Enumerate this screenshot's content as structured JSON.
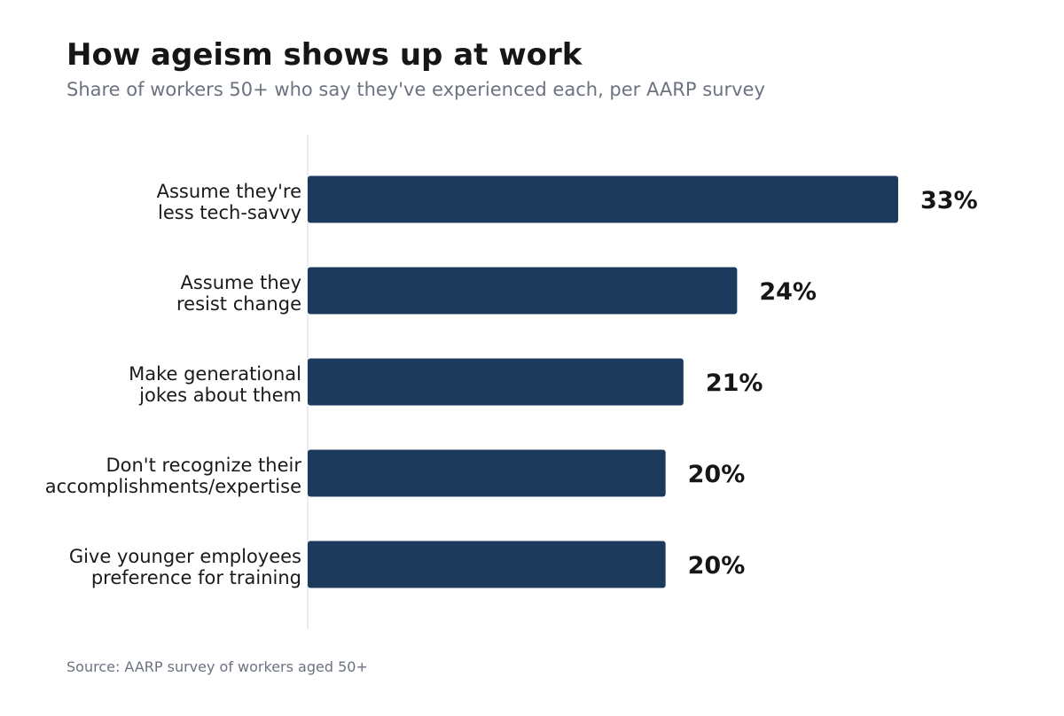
{
  "header": {
    "title": "How ageism shows up at work",
    "subtitle": "Share of workers 50+ who say they've experienced each, per AARP survey"
  },
  "footer": {
    "source": "Source: AARP survey of workers aged 50+"
  },
  "colors": {
    "bar": "#1c3a5c",
    "axis": "#e3e6ea"
  },
  "chart_data": {
    "type": "bar",
    "orientation": "horizontal",
    "title": "How ageism shows up at work",
    "subtitle": "Share of workers 50+ who say they've experienced each, per AARP survey",
    "categories": [
      [
        "Assume they're",
        "less tech-savvy"
      ],
      [
        "Assume they",
        "resist change"
      ],
      [
        "Make generational",
        "jokes about them"
      ],
      [
        "Don't recognize their",
        "accomplishments/expertise"
      ],
      [
        "Give younger employees",
        "preference for training"
      ]
    ],
    "values": [
      33,
      24,
      21,
      20,
      20
    ],
    "value_labels": [
      "33%",
      "24%",
      "21%",
      "20%",
      "20%"
    ],
    "unit": "%",
    "xlim": [
      0,
      33
    ],
    "grid": false,
    "legend": "none"
  }
}
